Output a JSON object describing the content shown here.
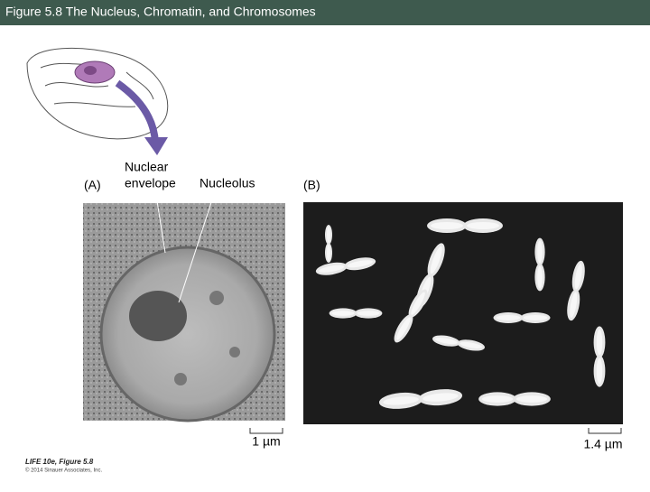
{
  "header": {
    "title": "Figure 5.8  The Nucleus, Chromatin, and Chromosomes"
  },
  "figure": {
    "panel_a": {
      "label": "(A)",
      "scale_bar": "1 µm"
    },
    "panel_b": {
      "label": "(B)",
      "scale_bar": "1.4 µm"
    },
    "callouts": {
      "nuclear_envelope": [
        "Nuclear",
        "envelope"
      ],
      "nucleolus": "Nucleolus"
    }
  },
  "footer": {
    "source": "LIFE 10e, Figure 5.8",
    "copyright": "© 2014 Sinauer Associates, Inc."
  }
}
